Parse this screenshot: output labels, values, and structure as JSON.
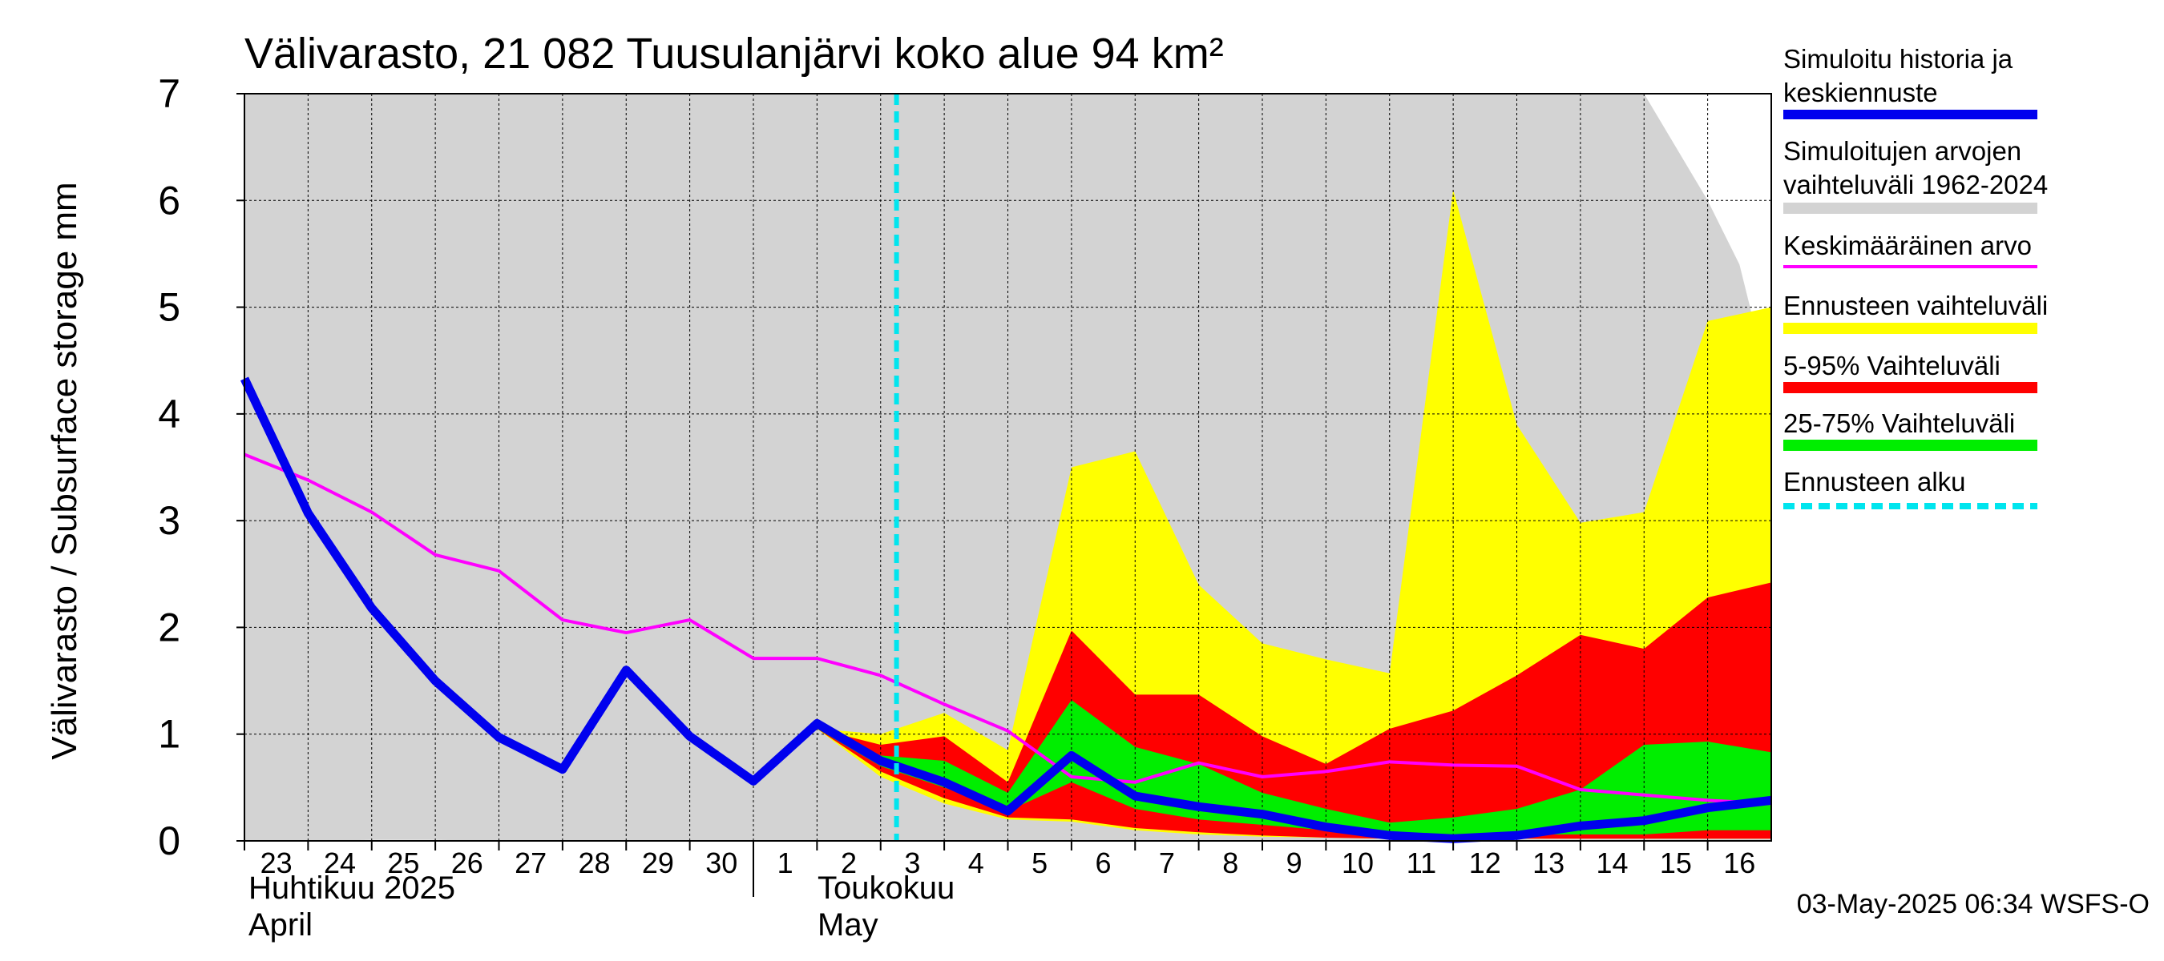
{
  "chart_data": {
    "type": "area",
    "title": "Välivarasto, 21 082 Tuusulanjärvi koko alue 94 km²",
    "ylabel": "Välivarasto / Subsurface storage  mm",
    "xlabel": "",
    "ylim": [
      0,
      7
    ],
    "yticks": [
      0,
      1,
      2,
      3,
      4,
      5,
      6,
      7
    ],
    "x_start": "2025-04-23",
    "x_end": "2025-05-17",
    "day_ticks": [
      "23",
      "24",
      "25",
      "26",
      "27",
      "28",
      "29",
      "30",
      "1",
      "2",
      "3",
      "4",
      "5",
      "6",
      "7",
      "8",
      "9",
      "10",
      "11",
      "12",
      "13",
      "14",
      "15",
      "16"
    ],
    "month_labels": [
      {
        "fi": "Huhtikuu  2025",
        "en": "April"
      },
      {
        "fi": "Toukokuu",
        "en": "May"
      }
    ],
    "forecast_start": "2025-05-03T06:00",
    "grid": true,
    "legend_position": "right",
    "legend": [
      {
        "label": "Simuloitu historia ja keskiennuste",
        "color": "#0000ee",
        "style": "thick-line"
      },
      {
        "label": "Simuloitujen arvojen vaihteluväli 1962-2024",
        "color": "#d3d3d3",
        "style": "band"
      },
      {
        "label": "Keskimääräinen arvo",
        "color": "#ff00ff",
        "style": "line"
      },
      {
        "label": "Ennusteen vaihteluväli",
        "color": "#ffff00",
        "style": "band"
      },
      {
        "label": "5-95% Vaihteluväli",
        "color": "#ff0000",
        "style": "band"
      },
      {
        "label": "25-75% Vaihteluväli",
        "color": "#00ee00",
        "style": "band"
      },
      {
        "label": "Ennusteen alku",
        "color": "#00e5ee",
        "style": "dashed"
      }
    ],
    "timestamp": "03-May-2025 06:34 WSFS-O",
    "series": [
      {
        "name": "Simuloitujen arvojen vaihteluväli 1962-2024",
        "kind": "band",
        "x": [
          "2025-04-23",
          "2025-04-24",
          "2025-04-25",
          "2025-04-26",
          "2025-04-27",
          "2025-04-28",
          "2025-04-29",
          "2025-04-30",
          "2025-05-01",
          "2025-05-02",
          "2025-05-03",
          "2025-05-04",
          "2025-05-05",
          "2025-05-06",
          "2025-05-07",
          "2025-05-08",
          "2025-05-09",
          "2025-05-10",
          "2025-05-11",
          "2025-05-12",
          "2025-05-13",
          "2025-05-14",
          "2025-05-15",
          "2025-05-16",
          "2025-05-16T12:00",
          "2025-05-17"
        ],
        "low": [
          0,
          0,
          0.01,
          0.01,
          0,
          0,
          0,
          0,
          0,
          0,
          0,
          0,
          0,
          0,
          0,
          0,
          0,
          0,
          0,
          0,
          0,
          0,
          0,
          0,
          0,
          0
        ],
        "high": [
          7,
          7,
          7,
          7,
          7,
          7,
          7,
          7,
          7,
          7,
          7,
          7,
          7,
          7,
          7,
          7,
          7,
          7,
          7,
          7,
          7,
          7,
          7,
          6,
          5.4,
          4.2
        ]
      },
      {
        "name": "Ennusteen vaihteluväli",
        "kind": "band",
        "x": [
          "2025-05-02",
          "2025-05-03",
          "2025-05-04",
          "2025-05-05",
          "2025-05-06",
          "2025-05-07",
          "2025-05-08",
          "2025-05-09",
          "2025-05-10",
          "2025-05-11",
          "2025-05-12",
          "2025-05-13",
          "2025-05-14",
          "2025-05-15",
          "2025-05-16",
          "2025-05-17"
        ],
        "low": [
          1.05,
          0.6,
          0.35,
          0.2,
          0.18,
          0.1,
          0.06,
          0.04,
          0.03,
          0.02,
          0.02,
          0.02,
          0.02,
          0.02,
          0.02,
          0.02
        ],
        "high": [
          1.05,
          1.0,
          1.2,
          0.85,
          3.5,
          3.65,
          2.4,
          1.85,
          1.7,
          1.57,
          6.1,
          3.9,
          2.98,
          3.08,
          4.87,
          5.0
        ]
      },
      {
        "name": "5-95% Vaihteluväli",
        "kind": "band",
        "x": [
          "2025-05-02",
          "2025-05-03",
          "2025-05-04",
          "2025-05-05",
          "2025-05-06",
          "2025-05-07",
          "2025-05-08",
          "2025-05-09",
          "2025-05-10",
          "2025-05-11",
          "2025-05-12",
          "2025-05-13",
          "2025-05-14",
          "2025-05-15",
          "2025-05-16",
          "2025-05-17"
        ],
        "low": [
          1.05,
          0.65,
          0.4,
          0.22,
          0.2,
          0.12,
          0.08,
          0.05,
          0.03,
          0.02,
          0.02,
          0.02,
          0.02,
          0.02,
          0.02,
          0.02
        ],
        "high": [
          1.05,
          0.9,
          0.98,
          0.55,
          1.97,
          1.37,
          1.37,
          0.98,
          0.72,
          1.05,
          1.22,
          1.55,
          1.93,
          1.8,
          2.28,
          2.42
        ]
      },
      {
        "name": "25-75% Vaihteluväli",
        "kind": "band",
        "x": [
          "2025-05-02",
          "2025-05-03",
          "2025-05-04",
          "2025-05-05",
          "2025-05-06",
          "2025-05-07",
          "2025-05-08",
          "2025-05-09",
          "2025-05-10",
          "2025-05-11",
          "2025-05-12",
          "2025-05-13",
          "2025-05-14",
          "2025-05-15",
          "2025-05-16",
          "2025-05-17"
        ],
        "low": [
          1.05,
          0.7,
          0.5,
          0.28,
          0.55,
          0.3,
          0.2,
          0.15,
          0.1,
          0.06,
          0.06,
          0.06,
          0.06,
          0.06,
          0.1,
          0.1
        ],
        "high": [
          1.05,
          0.8,
          0.75,
          0.45,
          1.32,
          0.88,
          0.72,
          0.45,
          0.3,
          0.17,
          0.22,
          0.3,
          0.48,
          0.9,
          0.93,
          0.83
        ]
      },
      {
        "name": "Keskimääräinen arvo",
        "kind": "line",
        "x": [
          "2025-04-23",
          "2025-04-24",
          "2025-04-25",
          "2025-04-26",
          "2025-04-27",
          "2025-04-28",
          "2025-04-29",
          "2025-04-30",
          "2025-05-01",
          "2025-05-02",
          "2025-05-03",
          "2025-05-04",
          "2025-05-05",
          "2025-05-06",
          "2025-05-07",
          "2025-05-08",
          "2025-05-09",
          "2025-05-10",
          "2025-05-11",
          "2025-05-12",
          "2025-05-13",
          "2025-05-14",
          "2025-05-15",
          "2025-05-16",
          "2025-05-17"
        ],
        "values": [
          3.62,
          3.38,
          3.08,
          2.68,
          2.53,
          2.07,
          1.95,
          2.07,
          1.71,
          1.71,
          1.55,
          1.28,
          1.03,
          0.6,
          0.55,
          0.73,
          0.6,
          0.65,
          0.74,
          0.71,
          0.7,
          0.48,
          0.43,
          0.38,
          0.35
        ]
      },
      {
        "name": "Simuloitu historia ja keskiennuste",
        "kind": "line",
        "x": [
          "2025-04-23",
          "2025-04-24",
          "2025-04-25",
          "2025-04-26",
          "2025-04-27",
          "2025-04-28",
          "2025-04-29",
          "2025-04-30",
          "2025-05-01",
          "2025-05-02",
          "2025-05-03",
          "2025-05-04",
          "2025-05-05",
          "2025-05-06",
          "2025-05-07",
          "2025-05-08",
          "2025-05-09",
          "2025-05-10",
          "2025-05-11",
          "2025-05-12",
          "2025-05-13",
          "2025-05-14",
          "2025-05-15",
          "2025-05-16",
          "2025-05-17"
        ],
        "values": [
          4.33,
          3.07,
          2.18,
          1.5,
          0.97,
          0.67,
          1.6,
          0.98,
          0.56,
          1.1,
          0.75,
          0.55,
          0.28,
          0.8,
          0.42,
          0.32,
          0.25,
          0.13,
          0.05,
          0.02,
          0.05,
          0.14,
          0.19,
          0.31,
          0.38
        ]
      }
    ]
  }
}
